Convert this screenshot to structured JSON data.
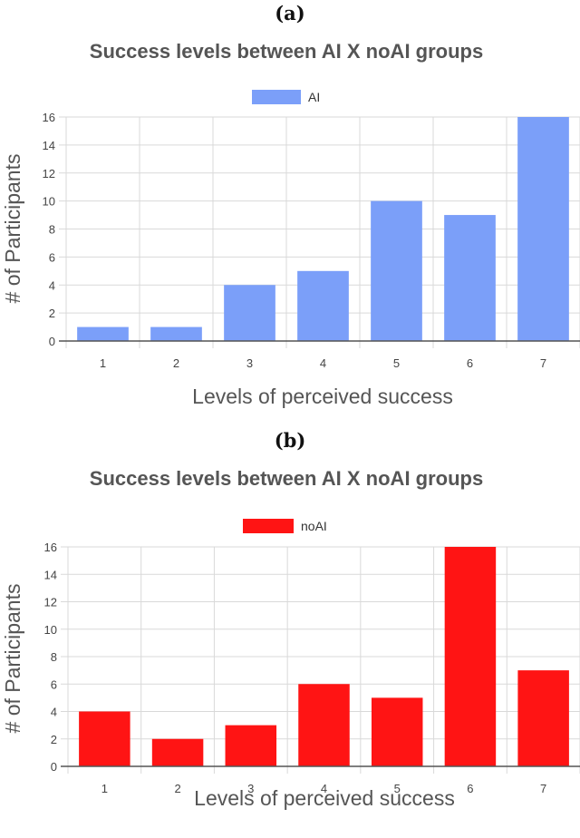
{
  "chart_data": [
    {
      "panel_label": "(a)",
      "type": "bar",
      "title": "Success levels between AI X noAI groups",
      "xlabel": "Levels of perceived success",
      "ylabel": "# of Participants",
      "categories": [
        "1",
        "2",
        "3",
        "4",
        "5",
        "6",
        "7"
      ],
      "series": [
        {
          "name": "AI",
          "color": "#7b9ff9",
          "values": [
            1,
            1,
            4,
            5,
            10,
            9,
            16
          ]
        }
      ],
      "ylim": [
        0,
        16
      ],
      "yticks": [
        "0",
        "2",
        "4",
        "6",
        "8",
        "10",
        "12",
        "14",
        "16"
      ],
      "grid": true,
      "legend_position": "top-center"
    },
    {
      "panel_label": "(b)",
      "type": "bar",
      "title": "Success levels between AI X noAI groups",
      "xlabel": "Levels of perceived success",
      "ylabel": "# of Participants",
      "categories": [
        "1",
        "2",
        "3",
        "4",
        "5",
        "6",
        "7"
      ],
      "series": [
        {
          "name": "noAI",
          "color": "#ff1414",
          "values": [
            4,
            2,
            3,
            6,
            5,
            16,
            7
          ]
        }
      ],
      "ylim": [
        0,
        16
      ],
      "yticks": [
        "0",
        "2",
        "4",
        "6",
        "8",
        "10",
        "12",
        "14",
        "16"
      ],
      "grid": true,
      "legend_position": "top-center"
    }
  ]
}
